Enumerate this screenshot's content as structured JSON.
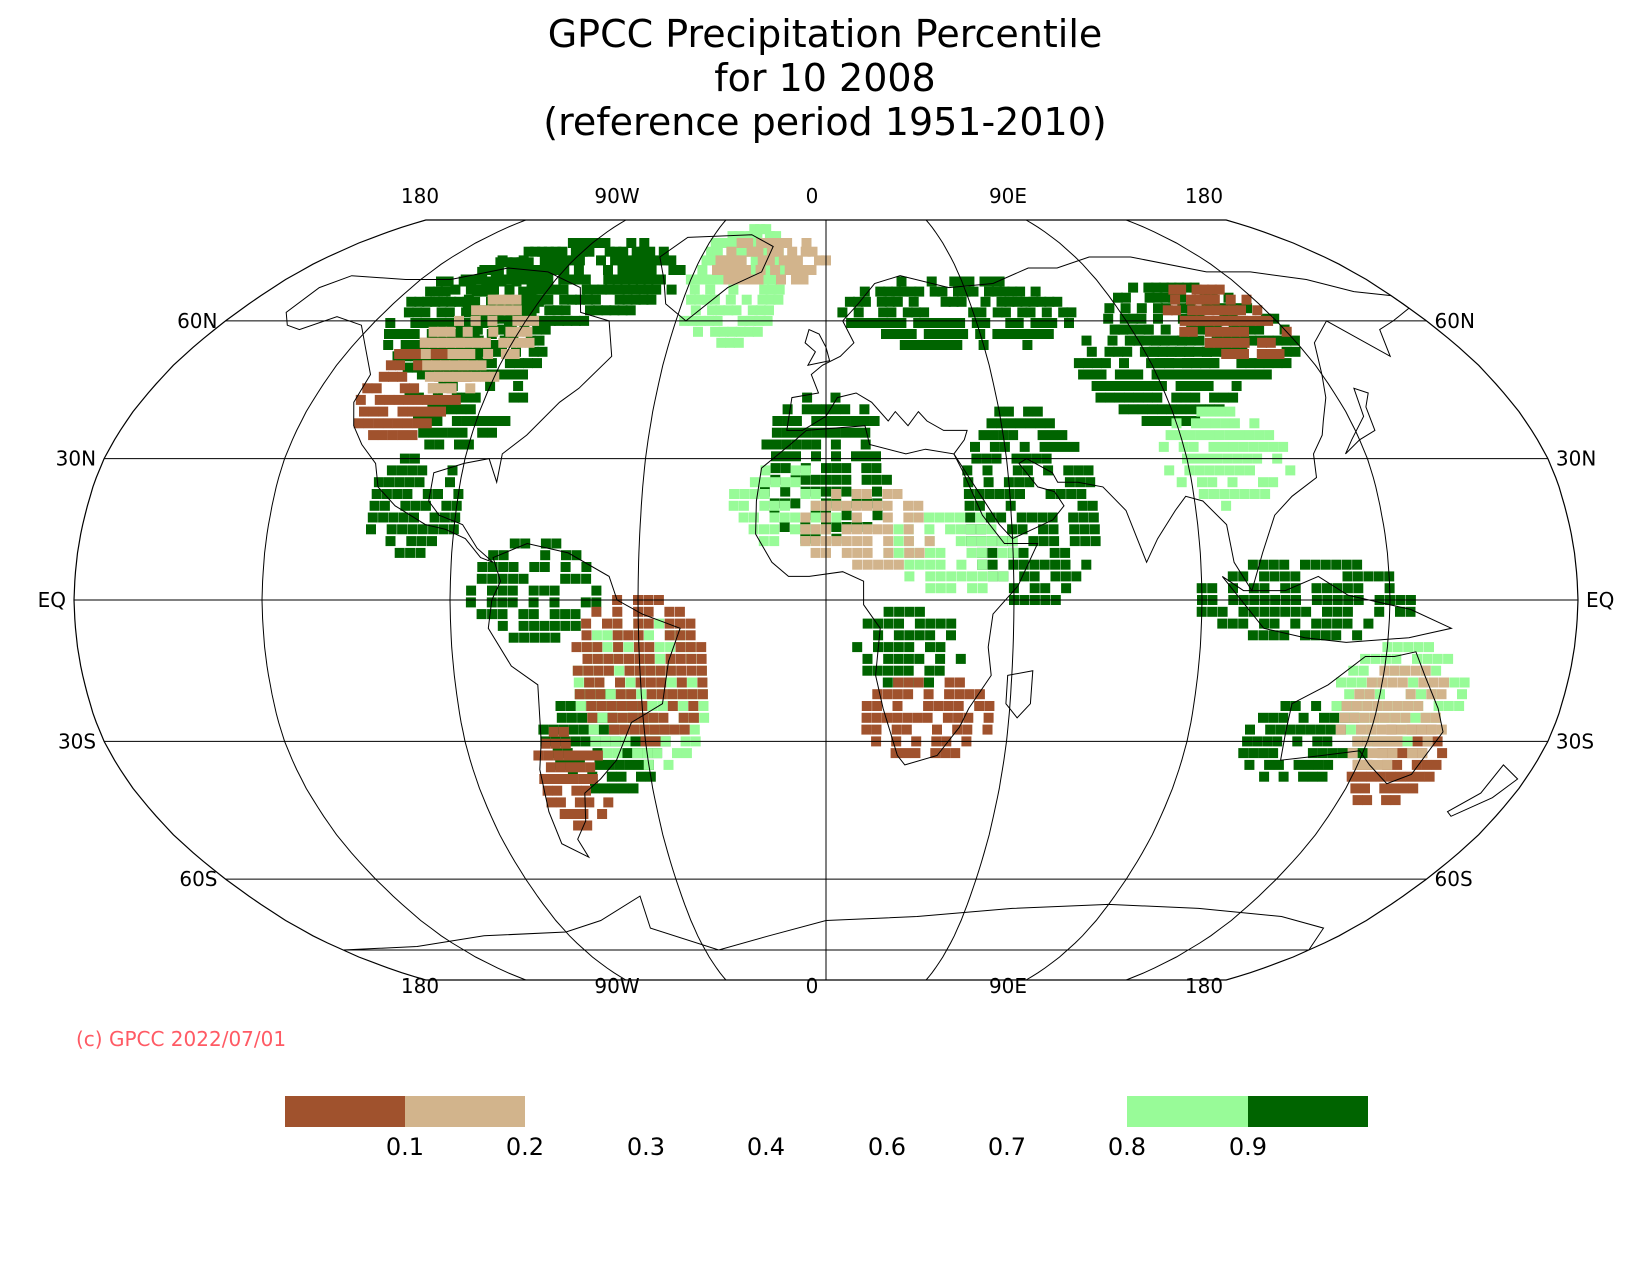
{
  "title": {
    "line1": "GPCC Precipitation Percentile",
    "line2": "for 10 2008",
    "line3": "(reference period 1951-2010)"
  },
  "map": {
    "projection": "robinson",
    "longitude_labels_top": [
      "180",
      "90W",
      "0",
      "90E",
      "180"
    ],
    "longitude_labels_bottom": [
      "180",
      "90W",
      "0",
      "90E",
      "180"
    ],
    "latitude_labels_left": [
      "60N",
      "30N",
      "EQ",
      "30S",
      "60S"
    ],
    "latitude_labels_right": [
      "60N",
      "30N",
      "EQ",
      "30S",
      "60S"
    ],
    "meridians_deg": [
      -135,
      -90,
      -45,
      0,
      45,
      90,
      135
    ],
    "parallels_deg": [
      60,
      30,
      0,
      -30,
      -60
    ],
    "colors": {
      "very_dry": "#a0522d",
      "dry": "#d2b48c",
      "wet": "#98fb98",
      "very_wet": "#006400",
      "coastline": "#000000",
      "grid": "#000000"
    },
    "anomaly_regions": [
      {
        "category": "very_wet",
        "lon": -85,
        "lat": 70,
        "extent": [
          14,
          4
        ]
      },
      {
        "category": "very_wet",
        "lon": -110,
        "lat": 62,
        "extent": [
          8,
          5
        ]
      },
      {
        "category": "very_wet",
        "lon": -95,
        "lat": 48,
        "extent": [
          6,
          6
        ]
      },
      {
        "category": "very_wet",
        "lon": -100,
        "lat": 20,
        "extent": [
          4,
          4
        ]
      },
      {
        "category": "very_wet",
        "lon": -70,
        "lat": 2,
        "extent": [
          6,
          4
        ]
      },
      {
        "category": "very_wet",
        "lon": -55,
        "lat": -30,
        "extent": [
          6,
          4
        ]
      },
      {
        "category": "very_wet",
        "lon": 0,
        "lat": 28,
        "extent": [
          6,
          6
        ]
      },
      {
        "category": "very_wet",
        "lon": 50,
        "lat": 20,
        "extent": [
          6,
          8
        ]
      },
      {
        "category": "very_wet",
        "lon": 40,
        "lat": 62,
        "extent": [
          14,
          3
        ]
      },
      {
        "category": "very_wet",
        "lon": 90,
        "lat": 48,
        "extent": [
          8,
          4
        ]
      },
      {
        "category": "very_wet",
        "lon": 110,
        "lat": 58,
        "extent": [
          10,
          4
        ]
      },
      {
        "category": "very_wet",
        "lon": 115,
        "lat": 0,
        "extent": [
          10,
          3
        ]
      },
      {
        "category": "very_wet",
        "lon": 120,
        "lat": -30,
        "extent": [
          6,
          3
        ]
      },
      {
        "category": "very_wet",
        "lon": 20,
        "lat": -10,
        "extent": [
          5,
          3
        ]
      },
      {
        "category": "wet",
        "lon": -30,
        "lat": 70,
        "extent": [
          6,
          6
        ]
      },
      {
        "category": "wet",
        "lon": -10,
        "lat": 20,
        "extent": [
          5,
          3
        ]
      },
      {
        "category": "wet",
        "lon": 30,
        "lat": 10,
        "extent": [
          6,
          3
        ]
      },
      {
        "category": "wet",
        "lon": -45,
        "lat": -20,
        "extent": [
          6,
          6
        ]
      },
      {
        "category": "wet",
        "lon": 100,
        "lat": 30,
        "extent": [
          6,
          4
        ]
      },
      {
        "category": "wet",
        "lon": 140,
        "lat": -20,
        "extent": [
          6,
          4
        ]
      },
      {
        "category": "very_dry",
        "lon": -45,
        "lat": -15,
        "extent": [
          6,
          6
        ]
      },
      {
        "category": "very_dry",
        "lon": 25,
        "lat": -25,
        "extent": [
          6,
          3
        ]
      },
      {
        "category": "very_dry",
        "lon": 145,
        "lat": -35,
        "extent": [
          4,
          3
        ]
      },
      {
        "category": "very_dry",
        "lon": -110,
        "lat": 45,
        "extent": [
          5,
          4
        ]
      },
      {
        "category": "very_dry",
        "lon": 120,
        "lat": 60,
        "extent": [
          6,
          3
        ]
      },
      {
        "category": "very_dry",
        "lon": -65,
        "lat": -38,
        "extent": [
          3,
          4
        ]
      },
      {
        "category": "dry",
        "lon": 10,
        "lat": 15,
        "extent": [
          6,
          3
        ]
      },
      {
        "category": "dry",
        "lon": 140,
        "lat": -25,
        "extent": [
          5,
          4
        ]
      },
      {
        "category": "dry",
        "lon": -100,
        "lat": 55,
        "extent": [
          6,
          4
        ]
      },
      {
        "category": "dry",
        "lon": -20,
        "lat": 75,
        "extent": [
          8,
          2
        ]
      }
    ]
  },
  "copyright": "(c) GPCC 2022/07/01",
  "legend": {
    "swatches": [
      {
        "color": "#a0522d",
        "from": null,
        "to": 0.1
      },
      {
        "color": "#d2b48c",
        "from": 0.1,
        "to": 0.2
      },
      {
        "color": "#ffffff",
        "from": 0.2,
        "to": 0.8
      },
      {
        "color": "#98fb98",
        "from": 0.8,
        "to": 0.9
      },
      {
        "color": "#006400",
        "from": 0.9,
        "to": null
      }
    ],
    "tick_labels": [
      "0.1",
      "0.2",
      "0.3",
      "0.4",
      "0.6",
      "0.7",
      "0.8",
      "0.9"
    ]
  }
}
